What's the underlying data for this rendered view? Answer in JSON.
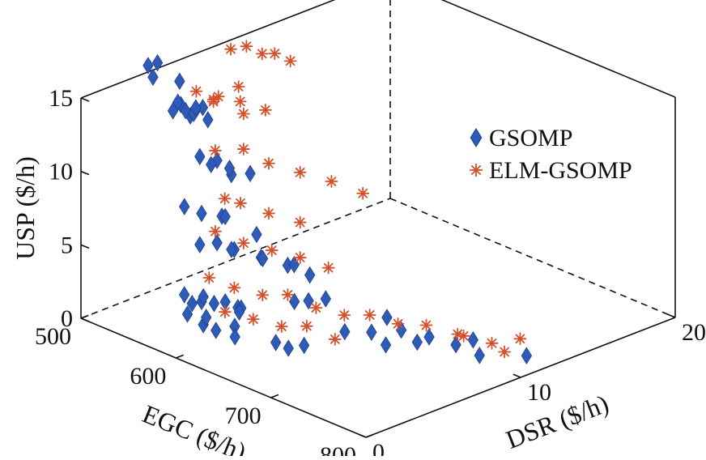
{
  "chart_data": {
    "type": "scatter",
    "projection": "3d",
    "title": "",
    "xlabel": "EGC ($/h)",
    "ylabel": "DSR ($/h)",
    "zlabel": "USP ($/h)",
    "xlim": [
      500,
      800
    ],
    "ylim": [
      0,
      20
    ],
    "zlim": [
      0,
      15
    ],
    "x_ticks": [
      "500",
      "600",
      "700",
      "800"
    ],
    "y_ticks": [
      "0",
      "10",
      "20"
    ],
    "z_ticks": [
      "0",
      "5",
      "10",
      "15"
    ],
    "grid": false,
    "box": "dashed back edges",
    "legend_position": "right",
    "series": [
      {
        "name": "GSOMP",
        "marker": "diamond",
        "color": "#2e5bb8",
        "points": [
          [
            540,
            4,
            14
          ],
          [
            545,
            3.5,
            14.5
          ],
          [
            550,
            4,
            13.5
          ],
          [
            555,
            4.5,
            14
          ],
          [
            548,
            3,
            14.2
          ],
          [
            552,
            4.2,
            13.8
          ],
          [
            560,
            3.6,
            14.1
          ],
          [
            546,
            4.6,
            13.7
          ],
          [
            558,
            3.2,
            14.4
          ],
          [
            562,
            4.4,
            13.4
          ],
          [
            530,
            2.5,
            17
          ],
          [
            535,
            2.8,
            17.2
          ],
          [
            540,
            2.2,
            16.6
          ],
          [
            555,
            3,
            16.4
          ],
          [
            560,
            4,
            11
          ],
          [
            570,
            4.5,
            10.8
          ],
          [
            580,
            3.5,
            11.2
          ],
          [
            590,
            4.2,
            10.5
          ],
          [
            575,
            5,
            10.2
          ],
          [
            600,
            4.8,
            10.6
          ],
          [
            560,
            3,
            8
          ],
          [
            570,
            3.5,
            7.6
          ],
          [
            580,
            4.2,
            7.4
          ],
          [
            590,
            3.8,
            7.8
          ],
          [
            610,
            4.6,
            6.8
          ],
          [
            560,
            4,
            5
          ],
          [
            570,
            4.5,
            5.2
          ],
          [
            580,
            5,
            4.8
          ],
          [
            590,
            4.2,
            5.4
          ],
          [
            600,
            5.5,
            4.6
          ],
          [
            610,
            5,
            5
          ],
          [
            620,
            6,
            4.4
          ],
          [
            630,
            5.8,
            4.8
          ],
          [
            640,
            6.2,
            4.2
          ],
          [
            560,
            3,
            2
          ],
          [
            570,
            3.5,
            1.6
          ],
          [
            580,
            3,
            2.4
          ],
          [
            590,
            3.8,
            2
          ],
          [
            600,
            4,
            1.8
          ],
          [
            610,
            3.6,
            2.2
          ],
          [
            560,
            3.5,
            1.2
          ],
          [
            575,
            4,
            1.4
          ],
          [
            595,
            4.4,
            1.2
          ],
          [
            580,
            3,
            0.5
          ],
          [
            590,
            3.2,
            0.3
          ],
          [
            600,
            3.8,
            0.6
          ],
          [
            610,
            3.2,
            0.4
          ],
          [
            560,
            3.2,
            0.6
          ],
          [
            570,
            3.8,
            0.4
          ],
          [
            640,
            4,
            0.5
          ],
          [
            650,
            4.2,
            0.3
          ],
          [
            660,
            4.6,
            0.6
          ],
          [
            680,
            6,
            1.5
          ],
          [
            700,
            6.5,
            1.8
          ],
          [
            720,
            6.2,
            1.6
          ],
          [
            740,
            7,
            2
          ],
          [
            700,
            7.5,
            2.4
          ],
          [
            720,
            7.2,
            2.2
          ],
          [
            720,
            9,
            1
          ],
          [
            740,
            9.5,
            0.8
          ],
          [
            750,
            10,
            1.2
          ],
          [
            760,
            9.8,
            0.5
          ],
          [
            790,
            11,
            0.8
          ],
          [
            650,
            5.5,
            3
          ],
          [
            660,
            6,
            3.2
          ],
          [
            640,
            5.2,
            2.8
          ]
        ]
      },
      {
        "name": "ELM-GSOMP",
        "marker": "asterisk",
        "color": "#d4502b",
        "points": [
          [
            540,
            5,
            14.5
          ],
          [
            550,
            5.5,
            14
          ],
          [
            560,
            5.2,
            14.6
          ],
          [
            545,
            5.8,
            13.6
          ],
          [
            570,
            6,
            14.2
          ],
          [
            580,
            5.6,
            13.8
          ],
          [
            590,
            6.4,
            14
          ],
          [
            565,
            6.2,
            15
          ],
          [
            560,
            6,
            17.5
          ],
          [
            570,
            6.4,
            17.8
          ],
          [
            580,
            6.8,
            17.4
          ],
          [
            590,
            7,
            17.6
          ],
          [
            600,
            7.4,
            17.2
          ],
          [
            560,
            5,
            11
          ],
          [
            580,
            5.6,
            11.4
          ],
          [
            600,
            6,
            10.8
          ],
          [
            620,
            6.8,
            10.4
          ],
          [
            640,
            7.6,
            10
          ],
          [
            660,
            8.4,
            9.4
          ],
          [
            570,
            5,
            8
          ],
          [
            580,
            5.4,
            7.8
          ],
          [
            600,
            6,
            7.4
          ],
          [
            620,
            6.8,
            7
          ],
          [
            560,
            5,
            5.5
          ],
          [
            580,
            5.6,
            5
          ],
          [
            600,
            6.2,
            4.8
          ],
          [
            620,
            6.8,
            4.6
          ],
          [
            640,
            7.4,
            4.2
          ],
          [
            560,
            4.6,
            2.5
          ],
          [
            580,
            5,
            2.2
          ],
          [
            600,
            5.6,
            2
          ],
          [
            620,
            6,
            2.4
          ],
          [
            640,
            6.6,
            1.8
          ],
          [
            660,
            7.2,
            1.6
          ],
          [
            580,
            4.4,
            0.8
          ],
          [
            600,
            5,
            0.6
          ],
          [
            620,
            5.6,
            0.4
          ],
          [
            640,
            6,
            0.8
          ],
          [
            660,
            6.6,
            0.2
          ],
          [
            690,
            7,
            2.5
          ],
          [
            710,
            7.6,
            2.2
          ],
          [
            730,
            8.2,
            2.4
          ],
          [
            750,
            9,
            2
          ],
          [
            740,
            10,
            1.2
          ],
          [
            760,
            10.6,
            1
          ],
          [
            780,
            11.2,
            1.6
          ],
          [
            770,
            10.8,
            0.6
          ]
        ]
      }
    ]
  }
}
